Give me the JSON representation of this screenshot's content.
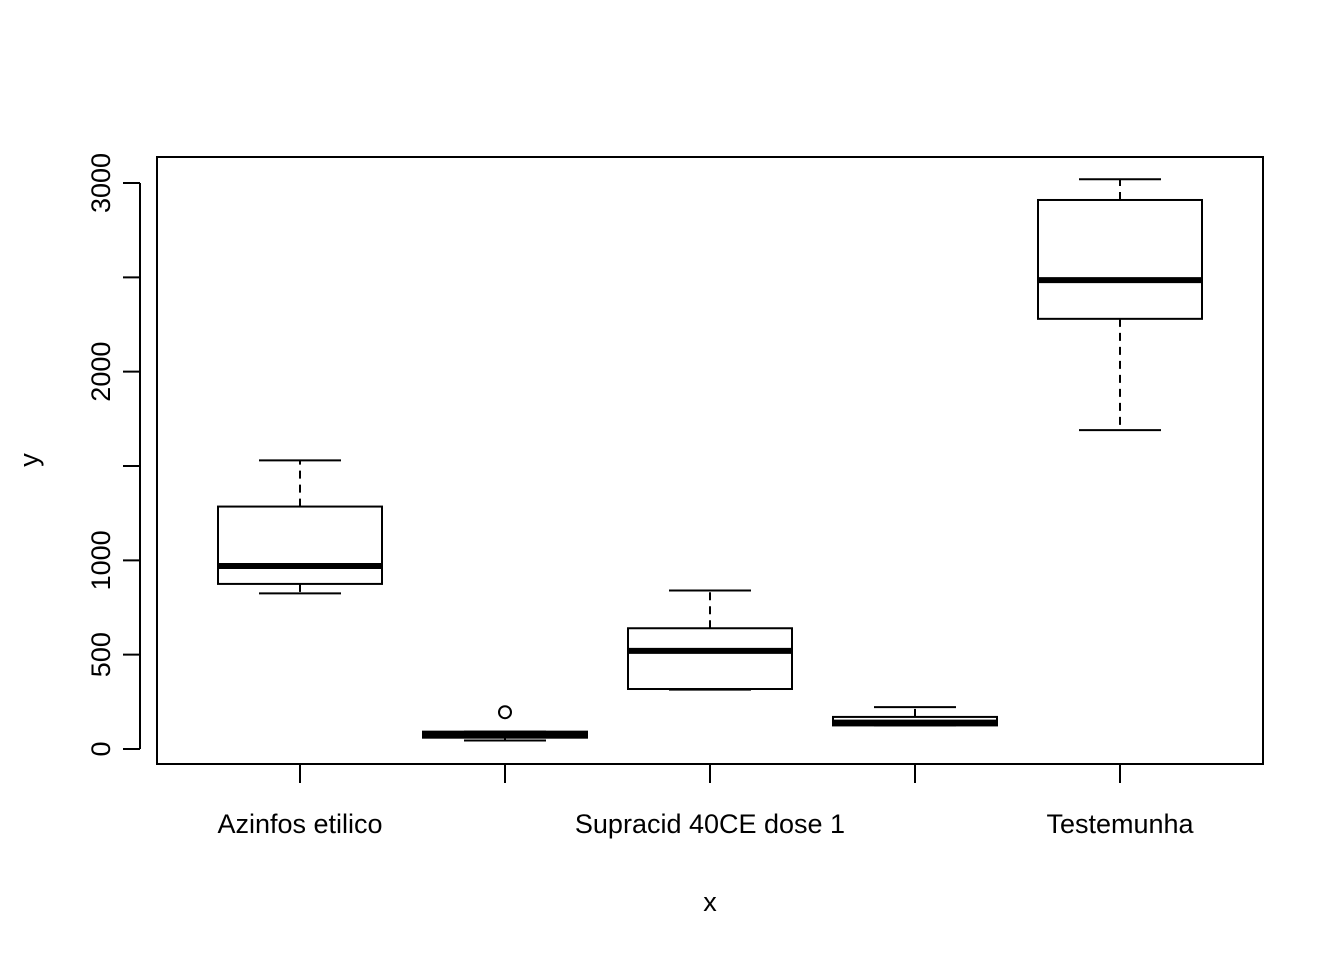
{
  "chart_data": {
    "type": "boxplot",
    "title": "",
    "xlabel": "x",
    "ylabel": "y",
    "ylim": [
      -80,
      3140
    ],
    "y_ticks": [
      0,
      500,
      1000,
      1500,
      2000,
      2500,
      3000
    ],
    "y_tick_labels": [
      "0",
      "500",
      "1000",
      "",
      "2000",
      "",
      "3000"
    ],
    "categories": [
      "Azinfos etilico",
      "",
      "Supracid 40CE dose 1",
      "",
      "Testemunha"
    ],
    "boxes": [
      {
        "whisker_low": 825,
        "q1": 875,
        "median": 970,
        "q3": 1285,
        "whisker_high": 1530,
        "outliers": []
      },
      {
        "whisker_low": 45,
        "q1": 60,
        "median": 72,
        "q3": 92,
        "whisker_high": 92,
        "outliers": [
          195
        ]
      },
      {
        "whisker_low": 315,
        "q1": 318,
        "median": 520,
        "q3": 640,
        "whisker_high": 840,
        "outliers": []
      },
      {
        "whisker_low": 125,
        "q1": 125,
        "median": 140,
        "q3": 170,
        "whisker_high": 222,
        "outliers": []
      },
      {
        "whisker_low": 1690,
        "q1": 2280,
        "median": 2485,
        "q3": 2910,
        "whisker_high": 3020,
        "outliers": []
      }
    ],
    "grid": false,
    "legend": "none"
  },
  "colors": {
    "line": "#000000",
    "box_fill": "#ffffff",
    "background": "#ffffff"
  }
}
